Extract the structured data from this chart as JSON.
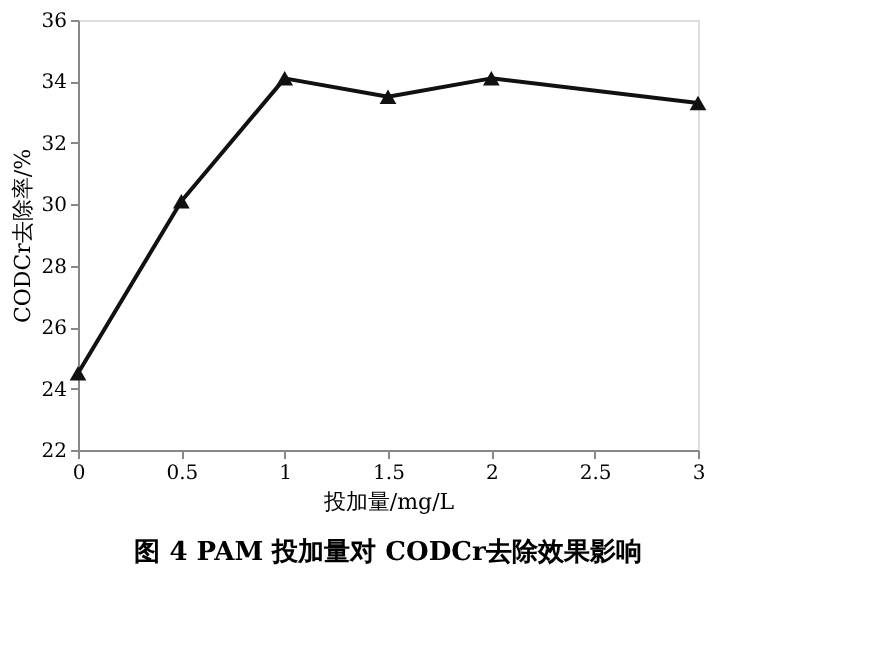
{
  "chart_data": {
    "type": "line",
    "title": "图 4   PAM 投加量对 CODCr去除效果影响",
    "xlabel": "投加量/mg/L",
    "ylabel": "CODCr去除率/%",
    "x": [
      0,
      0.5,
      1,
      1.5,
      2,
      3
    ],
    "series": [
      {
        "color": "#111111",
        "values": [
          24.5,
          30.1,
          34.1,
          33.5,
          34.1,
          33.3
        ]
      }
    ],
    "xlim": [
      0,
      3
    ],
    "xticks": [
      0,
      0.5,
      1,
      1.5,
      2,
      2.5,
      3
    ],
    "ylim": [
      22,
      36
    ],
    "yticks": [
      22,
      24,
      26,
      28,
      30,
      32,
      34,
      36
    ],
    "grid": false,
    "marker": "triangle",
    "line_style": "solid"
  }
}
